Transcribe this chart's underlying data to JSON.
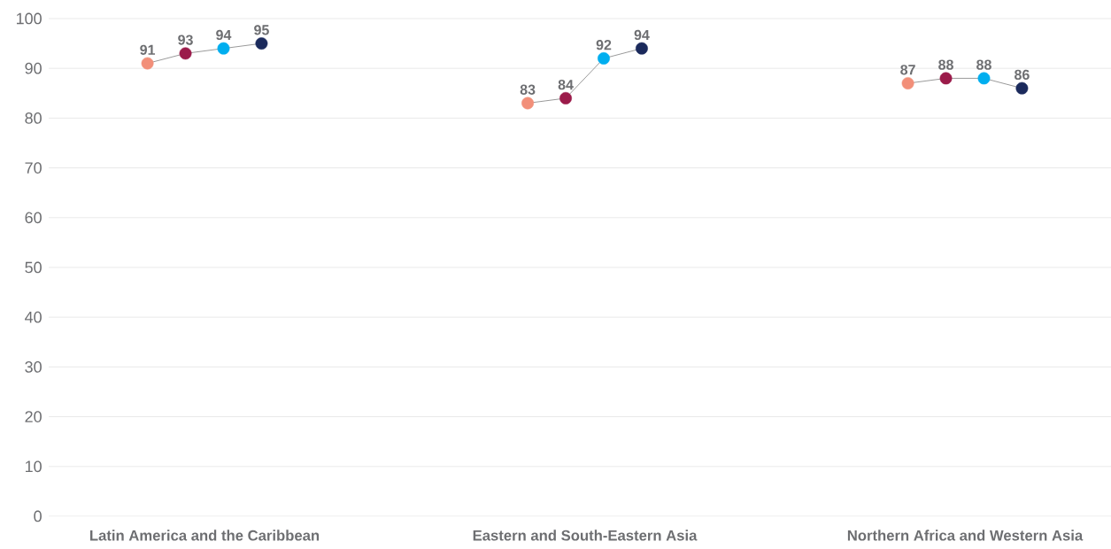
{
  "chart_data": {
    "type": "scatter",
    "categories": [
      "Latin America and the Caribbean",
      "Eastern and South-Eastern Asia",
      "Northern Africa and Western Asia"
    ],
    "series": [
      {
        "color": "#f28f79",
        "values": [
          91,
          83,
          87
        ]
      },
      {
        "color": "#9b1b4a",
        "values": [
          93,
          84,
          88
        ]
      },
      {
        "color": "#00aeef",
        "values": [
          94,
          92,
          88
        ]
      },
      {
        "color": "#1b2a5c",
        "values": [
          95,
          94,
          86
        ]
      }
    ],
    "ylim": [
      0,
      100
    ],
    "yticks": [
      0,
      10,
      20,
      30,
      40,
      50,
      60,
      70,
      80,
      90,
      100
    ],
    "grid": "y",
    "line_style": "solid",
    "data_labels": true
  }
}
